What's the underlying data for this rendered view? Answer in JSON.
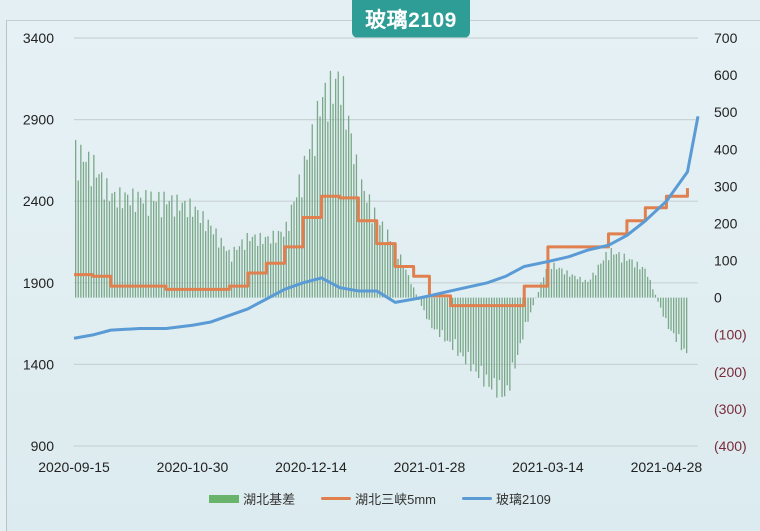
{
  "title": "玻璃2109",
  "colors": {
    "title_bg": "#2e9d96",
    "basis_bar": "#7aa888",
    "sanxia": "#e0804e",
    "glass": "#5b9bd5",
    "neg_label": "#7a2a3a",
    "legend_basis": "#6ab36a"
  },
  "legend": [
    {
      "label": "湖北基差",
      "type": "bar"
    },
    {
      "label": "湖北三峡5mm",
      "type": "line"
    },
    {
      "label": "玻璃2109",
      "type": "line"
    }
  ],
  "chart_data": {
    "type": "bar+line",
    "title": "玻璃2109",
    "x_tick_labels": [
      "2020-09-15",
      "2020-10-30",
      "2020-12-14",
      "2021-01-28",
      "2021-03-14",
      "2021-04-28"
    ],
    "left_axis": {
      "ticks": [
        "3400",
        "2900",
        "2400",
        "1900",
        "1400",
        "900"
      ],
      "range": [
        900,
        3400
      ]
    },
    "right_axis": {
      "ticks": [
        "700",
        "600",
        "500",
        "400",
        "300",
        "200",
        "100",
        "0",
        "(100)",
        "(200)",
        "(300)",
        "(400)"
      ],
      "range": [
        -400,
        700
      ]
    },
    "grid": "horizontal",
    "legend_position": "bottom",
    "series": [
      {
        "name": "湖北三峡5mm",
        "axis": "left",
        "type": "line",
        "x": [
          "2020-09-15",
          "2020-09-22",
          "2020-09-29",
          "2020-10-10",
          "2020-10-20",
          "2020-10-30",
          "2020-11-06",
          "2020-11-13",
          "2020-11-20",
          "2020-11-27",
          "2020-12-04",
          "2020-12-11",
          "2020-12-18",
          "2020-12-25",
          "2021-01-01",
          "2021-01-08",
          "2021-01-15",
          "2021-01-22",
          "2021-01-28",
          "2021-02-05",
          "2021-02-19",
          "2021-02-26",
          "2021-03-05",
          "2021-03-14",
          "2021-03-22",
          "2021-03-29",
          "2021-04-06",
          "2021-04-13",
          "2021-04-20",
          "2021-04-28",
          "2021-05-06"
        ],
        "values": [
          1950,
          1940,
          1880,
          1880,
          1860,
          1860,
          1860,
          1880,
          1960,
          2020,
          2120,
          2300,
          2430,
          2420,
          2280,
          2140,
          2000,
          1940,
          1820,
          1760,
          1760,
          1760,
          1880,
          2120,
          2120,
          2120,
          2200,
          2280,
          2360,
          2430,
          2480
        ]
      },
      {
        "name": "玻璃2109",
        "axis": "left",
        "type": "line",
        "x": [
          "2020-09-15",
          "2020-09-22",
          "2020-09-29",
          "2020-10-10",
          "2020-10-20",
          "2020-10-30",
          "2020-11-06",
          "2020-11-13",
          "2020-11-20",
          "2020-11-27",
          "2020-12-04",
          "2020-12-11",
          "2020-12-18",
          "2020-12-25",
          "2021-01-01",
          "2021-01-08",
          "2021-01-15",
          "2021-01-22",
          "2021-01-28",
          "2021-02-05",
          "2021-02-19",
          "2021-02-26",
          "2021-03-05",
          "2021-03-14",
          "2021-03-22",
          "2021-03-29",
          "2021-04-06",
          "2021-04-13",
          "2021-04-20",
          "2021-04-28",
          "2021-05-06",
          "2021-05-10"
        ],
        "values": [
          1560,
          1580,
          1610,
          1620,
          1620,
          1640,
          1660,
          1700,
          1740,
          1800,
          1860,
          1900,
          1930,
          1870,
          1850,
          1850,
          1780,
          1800,
          1820,
          1850,
          1900,
          1940,
          2000,
          2030,
          2060,
          2100,
          2130,
          2190,
          2280,
          2400,
          2580,
          2920
        ]
      },
      {
        "name": "湖北基差",
        "axis": "right",
        "type": "bar",
        "x": [
          "2020-09-15",
          "2020-09-22",
          "2020-09-29",
          "2020-10-10",
          "2020-10-20",
          "2020-10-30",
          "2020-11-06",
          "2020-11-13",
          "2020-11-20",
          "2020-11-27",
          "2020-12-04",
          "2020-12-11",
          "2020-12-18",
          "2020-12-25",
          "2021-01-01",
          "2021-01-08",
          "2021-01-15",
          "2021-01-22",
          "2021-01-28",
          "2021-02-05",
          "2021-02-19",
          "2021-02-26",
          "2021-03-05",
          "2021-03-14",
          "2021-03-22",
          "2021-03-29",
          "2021-04-06",
          "2021-04-13",
          "2021-04-20",
          "2021-04-28",
          "2021-05-06"
        ],
        "values": [
          375,
          340,
          260,
          255,
          250,
          230,
          180,
          110,
          155,
          150,
          170,
          330,
          510,
          560,
          300,
          200,
          130,
          20,
          -70,
          -120,
          -220,
          -250,
          -80,
          90,
          60,
          40,
          120,
          100,
          70,
          -70,
          -150
        ]
      }
    ]
  }
}
